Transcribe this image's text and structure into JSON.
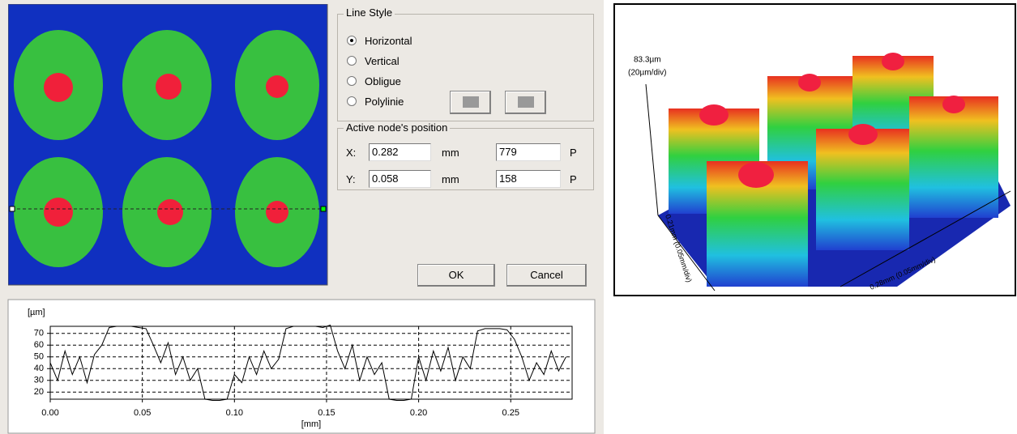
{
  "dialog": {
    "line_style": {
      "title": "Line Style",
      "options": [
        "Horizontal",
        "Vertical",
        "Obligue",
        "Polylinie"
      ]
    },
    "node_position": {
      "title": "Active node's position",
      "rows": [
        {
          "axis": "X:",
          "mm": "0.282",
          "unit": "mm",
          "pixels": "779",
          "pixel_unit": "P"
        },
        {
          "axis": "Y:",
          "mm": "0.058",
          "unit": "mm",
          "pixels": "158",
          "pixel_unit": "P"
        }
      ]
    },
    "buttons": [
      "OK",
      "Cancel"
    ]
  },
  "chart_data": {
    "type": "line",
    "y_label": "[µm]",
    "x_label": "[mm]",
    "color": "#000000",
    "grid": true,
    "xlim": [
      0,
      0.282
    ],
    "ylim": [
      14,
      76
    ],
    "xticks": [
      {
        "value": 0,
        "label": "0.00"
      },
      0.05,
      {
        "value": 0.1,
        "label": "0.10"
      },
      0.15,
      {
        "value": 0.2,
        "label": "0.20"
      },
      0.25
    ],
    "yticks": [
      20,
      30,
      40,
      50,
      60,
      70
    ],
    "x": [
      0,
      0.004,
      0.008,
      0.012,
      0.016,
      0.02,
      0.024,
      0.028,
      0.032,
      0.036,
      0.04,
      0.044,
      0.048,
      0.052,
      0.056,
      0.06,
      0.064,
      0.068,
      0.072,
      0.076,
      0.08,
      0.084,
      0.088,
      0.092,
      0.096,
      0.1,
      0.104,
      0.108,
      0.112,
      0.116,
      0.12,
      0.124,
      0.128,
      0.132,
      0.136,
      0.14,
      0.144,
      0.148,
      0.152,
      0.156,
      0.16,
      0.164,
      0.168,
      0.172,
      0.176,
      0.18,
      0.184,
      0.188,
      0.192,
      0.196,
      0.2,
      0.204,
      0.208,
      0.212,
      0.216,
      0.22,
      0.224,
      0.228,
      0.232,
      0.236,
      0.24,
      0.244,
      0.248,
      0.252,
      0.256,
      0.26,
      0.264,
      0.268,
      0.272,
      0.276,
      0.28
    ],
    "values": [
      45,
      30,
      55,
      35,
      50,
      28,
      52,
      60,
      75,
      76,
      76,
      76,
      75,
      74,
      60,
      45,
      62,
      35,
      50,
      30,
      40,
      14,
      13,
      13,
      14,
      35,
      28,
      50,
      35,
      55,
      40,
      48,
      74,
      76,
      76,
      76,
      76,
      75,
      77,
      55,
      40,
      60,
      30,
      50,
      35,
      45,
      14,
      13,
      13,
      14,
      50,
      30,
      55,
      38,
      58,
      30,
      50,
      40,
      72,
      74,
      74,
      74,
      73,
      65,
      50,
      30,
      45,
      35,
      55,
      38,
      50
    ]
  },
  "view_3d": {
    "z_label": "83.3µm",
    "z_scale": "(20µm/div)",
    "y_axis_label": "0.21mm (0.05mm/div)",
    "x_axis_label": "0.28mm (0.05mm/div)"
  }
}
